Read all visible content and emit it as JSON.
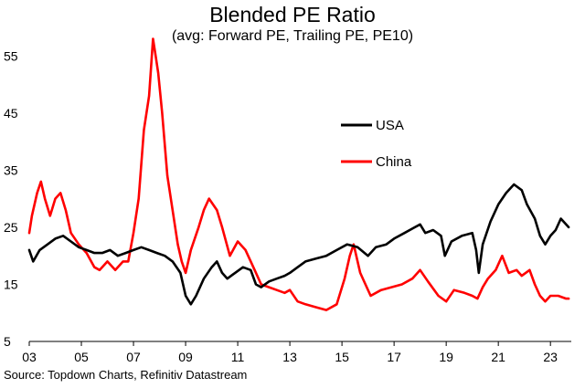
{
  "header": {
    "title": "Blended PE Ratio",
    "subtitle": "(avg: Forward PE, Trailing PE, PE10)"
  },
  "footer": {
    "source": "Source: Topdown Charts, Refinitiv Datastream"
  },
  "chart_data": {
    "type": "line",
    "title": "Blended PE Ratio",
    "subtitle": "(avg: Forward PE, Trailing PE, PE10)",
    "xlabel": "",
    "ylabel": "",
    "xlim": [
      2003,
      2023.8
    ],
    "ylim": [
      5,
      60
    ],
    "xticks": [
      2003,
      2005,
      2007,
      2009,
      2011,
      2013,
      2015,
      2017,
      2019,
      2021,
      2023
    ],
    "xtick_labels": [
      "03",
      "05",
      "07",
      "09",
      "11",
      "13",
      "15",
      "17",
      "19",
      "21",
      "23"
    ],
    "yticks": [
      5,
      15,
      25,
      35,
      45,
      55
    ],
    "ytick_labels": [
      "5",
      "15",
      "25",
      "35",
      "45",
      "55"
    ],
    "grid": false,
    "legend_position": "center-right",
    "series": [
      {
        "name": "USA",
        "color": "#000000",
        "points": [
          [
            2003.0,
            21.0
          ],
          [
            2003.15,
            19.0
          ],
          [
            2003.4,
            21.0
          ],
          [
            2003.7,
            22.0
          ],
          [
            2004.0,
            23.0
          ],
          [
            2004.3,
            23.5
          ],
          [
            2004.6,
            22.5
          ],
          [
            2004.9,
            21.5
          ],
          [
            2005.2,
            21.0
          ],
          [
            2005.5,
            20.5
          ],
          [
            2005.8,
            20.5
          ],
          [
            2006.1,
            21.0
          ],
          [
            2006.4,
            20.0
          ],
          [
            2006.7,
            20.5
          ],
          [
            2007.0,
            21.0
          ],
          [
            2007.3,
            21.5
          ],
          [
            2007.6,
            21.0
          ],
          [
            2007.9,
            20.5
          ],
          [
            2008.2,
            20.0
          ],
          [
            2008.5,
            19.0
          ],
          [
            2008.8,
            17.0
          ],
          [
            2009.0,
            13.0
          ],
          [
            2009.2,
            11.5
          ],
          [
            2009.4,
            13.0
          ],
          [
            2009.7,
            16.0
          ],
          [
            2010.0,
            18.0
          ],
          [
            2010.2,
            19.0
          ],
          [
            2010.4,
            17.0
          ],
          [
            2010.6,
            16.0
          ],
          [
            2010.9,
            17.0
          ],
          [
            2011.2,
            18.0
          ],
          [
            2011.5,
            17.5
          ],
          [
            2011.7,
            15.0
          ],
          [
            2011.9,
            14.5
          ],
          [
            2012.2,
            15.5
          ],
          [
            2012.5,
            16.0
          ],
          [
            2012.8,
            16.5
          ],
          [
            2013.0,
            17.0
          ],
          [
            2013.3,
            18.0
          ],
          [
            2013.6,
            19.0
          ],
          [
            2014.0,
            19.5
          ],
          [
            2014.4,
            20.0
          ],
          [
            2014.8,
            21.0
          ],
          [
            2015.2,
            22.0
          ],
          [
            2015.6,
            21.5
          ],
          [
            2016.0,
            20.0
          ],
          [
            2016.3,
            21.5
          ],
          [
            2016.7,
            22.0
          ],
          [
            2017.0,
            23.0
          ],
          [
            2017.4,
            24.0
          ],
          [
            2017.8,
            25.0
          ],
          [
            2018.0,
            25.5
          ],
          [
            2018.2,
            24.0
          ],
          [
            2018.5,
            24.5
          ],
          [
            2018.8,
            23.5
          ],
          [
            2018.95,
            20.0
          ],
          [
            2019.2,
            22.5
          ],
          [
            2019.6,
            23.5
          ],
          [
            2020.0,
            24.0
          ],
          [
            2020.15,
            21.0
          ],
          [
            2020.25,
            17.0
          ],
          [
            2020.4,
            22.0
          ],
          [
            2020.7,
            26.0
          ],
          [
            2021.0,
            29.0
          ],
          [
            2021.3,
            31.0
          ],
          [
            2021.6,
            32.5
          ],
          [
            2021.9,
            31.5
          ],
          [
            2022.1,
            29.0
          ],
          [
            2022.4,
            26.5
          ],
          [
            2022.6,
            23.5
          ],
          [
            2022.8,
            22.0
          ],
          [
            2023.0,
            23.5
          ],
          [
            2023.2,
            24.5
          ],
          [
            2023.4,
            26.5
          ],
          [
            2023.6,
            25.5
          ],
          [
            2023.7,
            25.0
          ]
        ]
      },
      {
        "name": "China",
        "color": "#ff0000",
        "points": [
          [
            2003.0,
            24.0
          ],
          [
            2003.1,
            27.0
          ],
          [
            2003.3,
            31.0
          ],
          [
            2003.45,
            33.0
          ],
          [
            2003.6,
            30.0
          ],
          [
            2003.8,
            27.0
          ],
          [
            2004.0,
            30.0
          ],
          [
            2004.2,
            31.0
          ],
          [
            2004.4,
            28.0
          ],
          [
            2004.6,
            24.0
          ],
          [
            2004.9,
            22.0
          ],
          [
            2005.2,
            20.5
          ],
          [
            2005.5,
            18.0
          ],
          [
            2005.7,
            17.5
          ],
          [
            2006.0,
            19.0
          ],
          [
            2006.3,
            17.5
          ],
          [
            2006.6,
            19.0
          ],
          [
            2006.8,
            19.0
          ],
          [
            2007.0,
            24.0
          ],
          [
            2007.2,
            30.0
          ],
          [
            2007.4,
            42.0
          ],
          [
            2007.6,
            48.0
          ],
          [
            2007.75,
            58.0
          ],
          [
            2007.85,
            55.0
          ],
          [
            2007.95,
            52.0
          ],
          [
            2008.1,
            45.0
          ],
          [
            2008.3,
            34.0
          ],
          [
            2008.5,
            28.0
          ],
          [
            2008.7,
            22.0
          ],
          [
            2008.85,
            19.0
          ],
          [
            2009.0,
            17.0
          ],
          [
            2009.2,
            21.0
          ],
          [
            2009.5,
            25.0
          ],
          [
            2009.7,
            28.0
          ],
          [
            2009.9,
            30.0
          ],
          [
            2010.2,
            28.0
          ],
          [
            2010.4,
            25.0
          ],
          [
            2010.7,
            20.0
          ],
          [
            2011.0,
            22.5
          ],
          [
            2011.3,
            21.0
          ],
          [
            2011.6,
            18.0
          ],
          [
            2011.9,
            15.0
          ],
          [
            2012.2,
            14.5
          ],
          [
            2012.5,
            14.0
          ],
          [
            2012.8,
            13.5
          ],
          [
            2013.0,
            14.0
          ],
          [
            2013.3,
            12.0
          ],
          [
            2013.6,
            11.5
          ],
          [
            2014.0,
            11.0
          ],
          [
            2014.4,
            10.5
          ],
          [
            2014.8,
            11.5
          ],
          [
            2015.1,
            16.0
          ],
          [
            2015.3,
            20.0
          ],
          [
            2015.45,
            22.0
          ],
          [
            2015.7,
            17.0
          ],
          [
            2015.9,
            15.0
          ],
          [
            2016.1,
            13.0
          ],
          [
            2016.5,
            14.0
          ],
          [
            2016.9,
            14.5
          ],
          [
            2017.3,
            15.0
          ],
          [
            2017.7,
            16.0
          ],
          [
            2018.0,
            17.5
          ],
          [
            2018.3,
            15.5
          ],
          [
            2018.7,
            13.0
          ],
          [
            2019.0,
            12.0
          ],
          [
            2019.3,
            14.0
          ],
          [
            2019.7,
            13.5
          ],
          [
            2020.0,
            13.0
          ],
          [
            2020.2,
            12.5
          ],
          [
            2020.4,
            14.5
          ],
          [
            2020.6,
            16.0
          ],
          [
            2020.9,
            17.5
          ],
          [
            2021.15,
            20.0
          ],
          [
            2021.4,
            17.0
          ],
          [
            2021.7,
            17.5
          ],
          [
            2021.9,
            16.5
          ],
          [
            2022.2,
            17.5
          ],
          [
            2022.4,
            15.0
          ],
          [
            2022.6,
            13.0
          ],
          [
            2022.8,
            12.0
          ],
          [
            2023.0,
            13.0
          ],
          [
            2023.3,
            13.0
          ],
          [
            2023.6,
            12.5
          ],
          [
            2023.7,
            12.5
          ]
        ]
      }
    ]
  }
}
